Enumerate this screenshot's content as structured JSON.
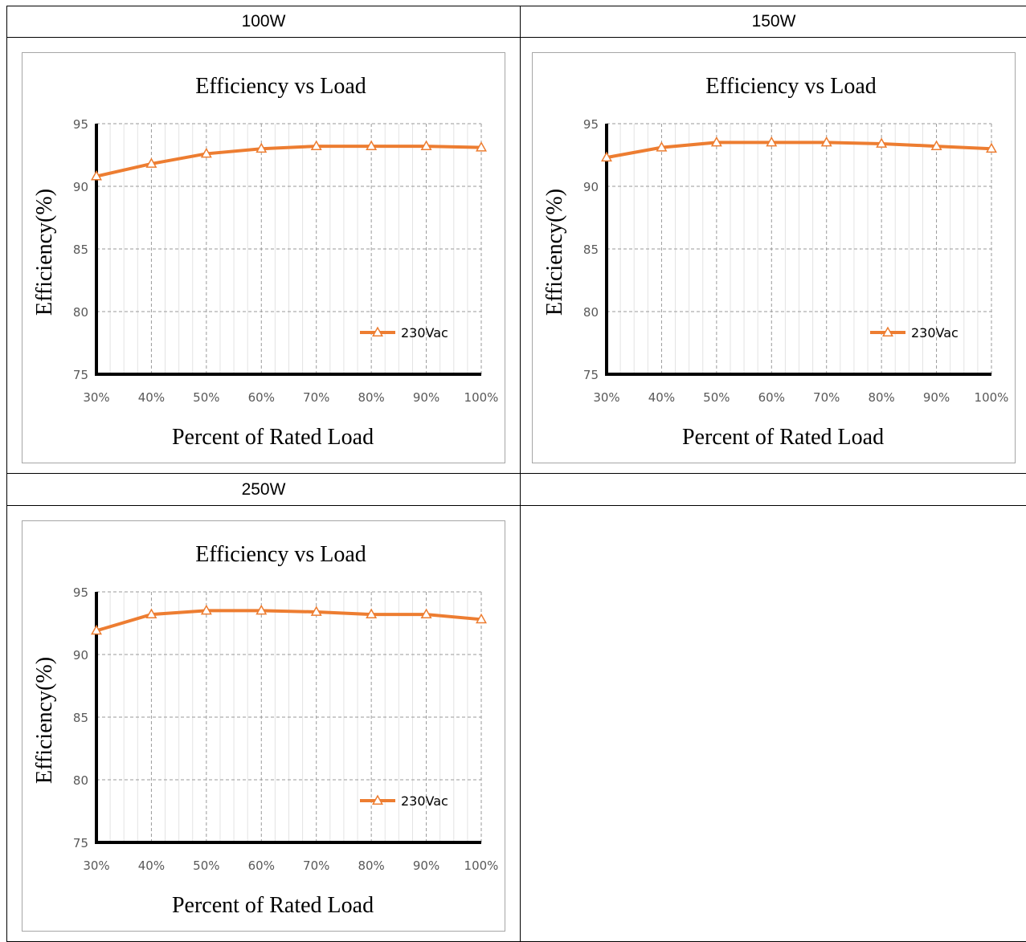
{
  "table": {
    "headers": [
      "100W",
      "150W",
      "250W",
      ""
    ]
  },
  "chart_data": [
    {
      "type": "line",
      "title": "Efficiency vs Load",
      "xlabel": "Percent of Rated Load",
      "ylabel": "Efficiency(%)",
      "categories": [
        "30%",
        "40%",
        "50%",
        "60%",
        "70%",
        "80%",
        "90%",
        "100%"
      ],
      "ylim": [
        75,
        95
      ],
      "yticks": [
        75,
        80,
        85,
        90,
        95
      ],
      "grid": true,
      "legend": "right",
      "series": [
        {
          "name": "230Vac",
          "color": "#ED7D31",
          "marker": "triangle",
          "values": [
            90.8,
            91.8,
            92.6,
            93.0,
            93.2,
            93.2,
            93.2,
            93.1
          ]
        }
      ]
    },
    {
      "type": "line",
      "title": "Efficiency vs Load",
      "xlabel": "Percent of Rated Load",
      "ylabel": "Efficiency(%)",
      "categories": [
        "30%",
        "40%",
        "50%",
        "60%",
        "70%",
        "80%",
        "90%",
        "100%"
      ],
      "ylim": [
        75,
        95
      ],
      "yticks": [
        75,
        80,
        85,
        90,
        95
      ],
      "grid": true,
      "legend": "right",
      "series": [
        {
          "name": "230Vac",
          "color": "#ED7D31",
          "marker": "triangle",
          "values": [
            92.3,
            93.1,
            93.5,
            93.5,
            93.5,
            93.4,
            93.2,
            93.0
          ]
        }
      ]
    },
    {
      "type": "line",
      "title": "Efficiency vs Load",
      "xlabel": "Percent of Rated Load",
      "ylabel": "Efficiency(%)",
      "categories": [
        "30%",
        "40%",
        "50%",
        "60%",
        "70%",
        "80%",
        "90%",
        "100%"
      ],
      "ylim": [
        75,
        95
      ],
      "yticks": [
        75,
        80,
        85,
        90,
        95
      ],
      "grid": true,
      "legend": "right",
      "series": [
        {
          "name": "230Vac",
          "color": "#ED7D31",
          "marker": "triangle",
          "values": [
            91.9,
            93.2,
            93.5,
            93.5,
            93.4,
            93.2,
            93.2,
            92.8
          ]
        }
      ]
    }
  ]
}
